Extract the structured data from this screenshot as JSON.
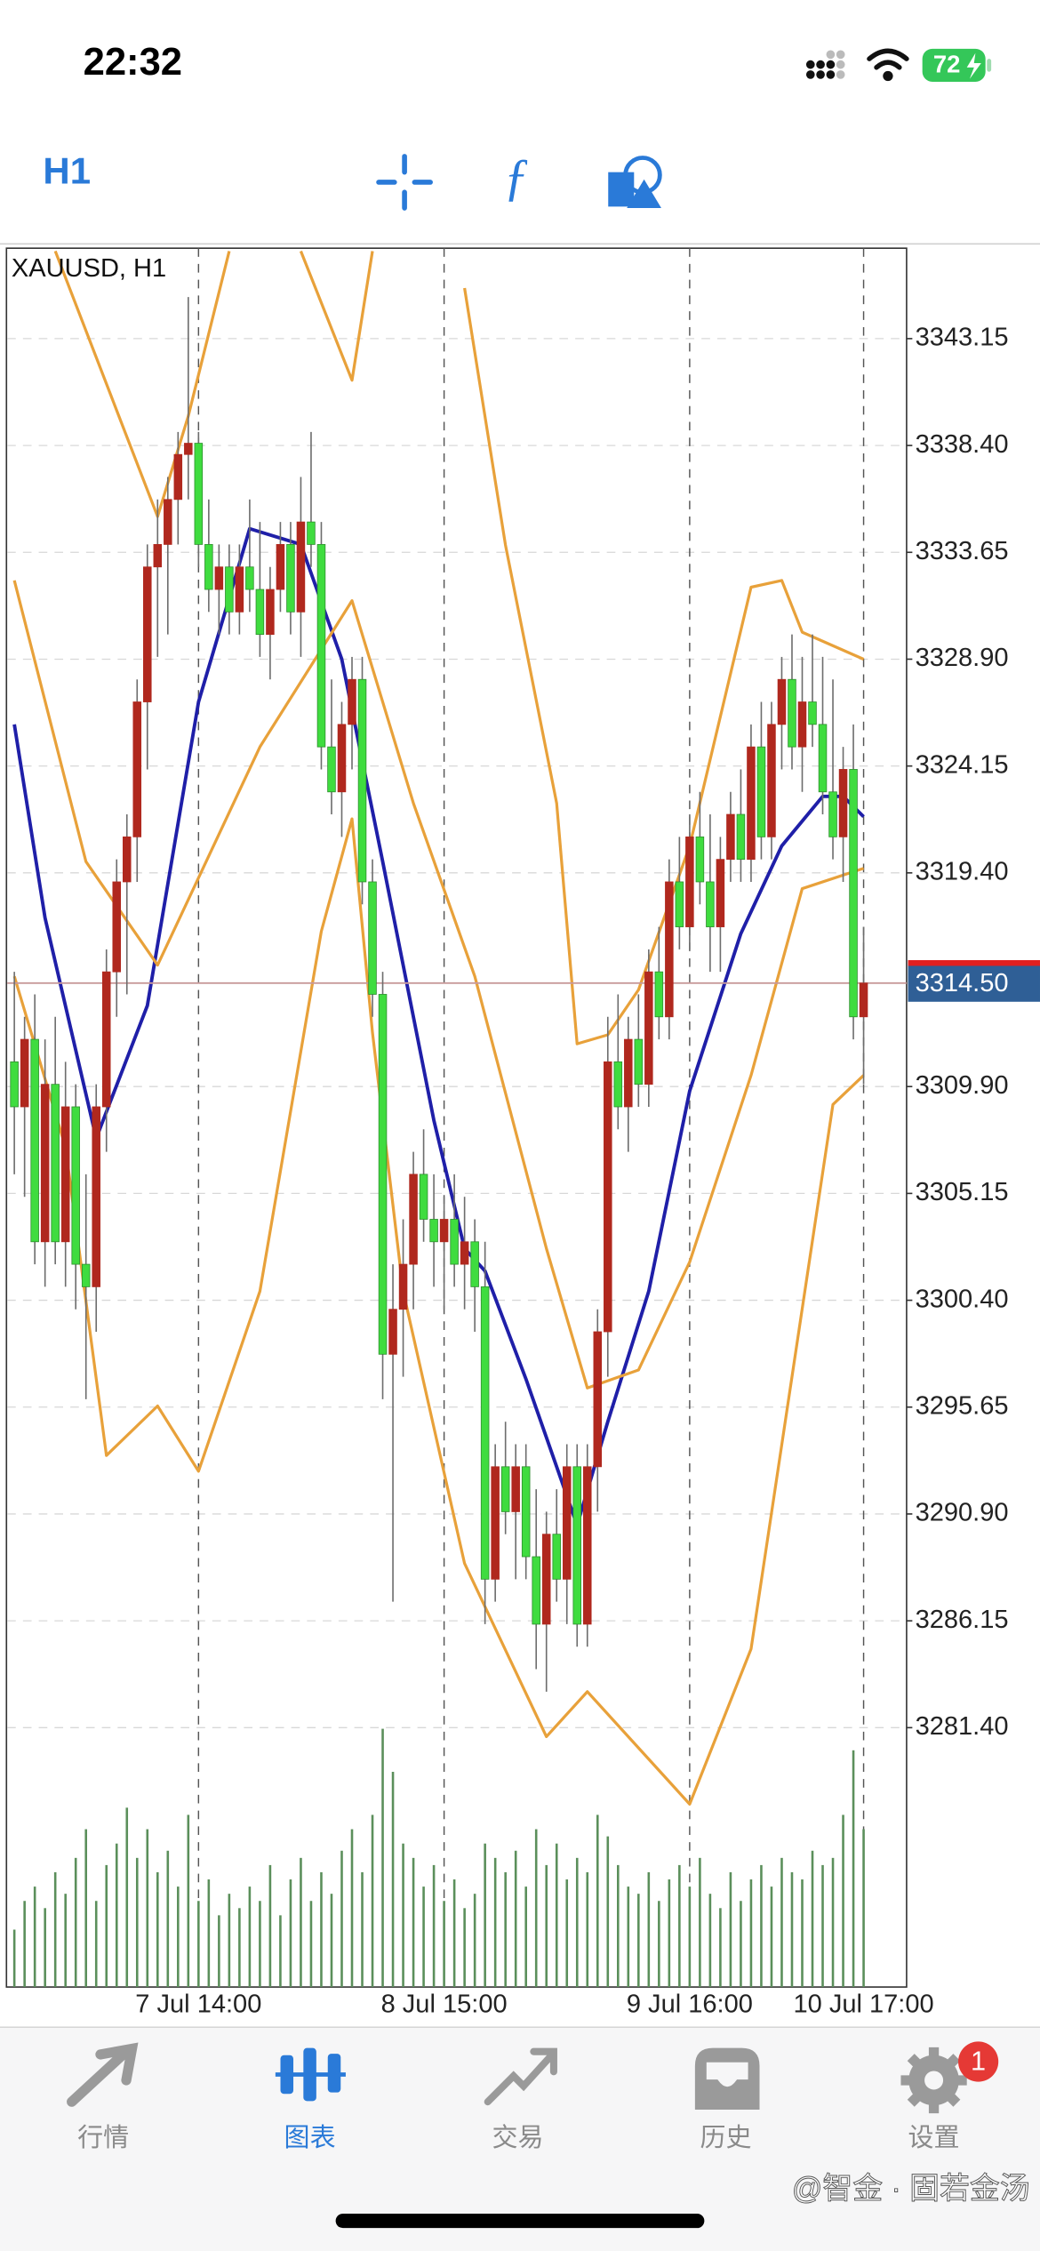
{
  "status_bar": {
    "time": "22:32",
    "battery": 72
  },
  "toolbar": {
    "timeframe": "H1"
  },
  "chart_data": {
    "type": "candlestick",
    "title": "XAUUSD, H1",
    "ohlc": [
      [
        3311,
        3315,
        3306,
        3309
      ],
      [
        3309,
        3313,
        3305,
        3312
      ],
      [
        3312,
        3314,
        3302,
        3303
      ],
      [
        3303,
        3312,
        3301,
        3310
      ],
      [
        3310,
        3313,
        3302,
        3303
      ],
      [
        3303,
        3311,
        3301,
        3309
      ],
      [
        3309,
        3310,
        3300,
        3302
      ],
      [
        3302,
        3306,
        3296,
        3301
      ],
      [
        3301,
        3310,
        3299,
        3309
      ],
      [
        3309,
        3316,
        3307,
        3315
      ],
      [
        3315,
        3320,
        3313,
        3319
      ],
      [
        3319,
        3322,
        3314,
        3321
      ],
      [
        3321,
        3328,
        3319,
        3327
      ],
      [
        3327,
        3334,
        3324,
        3333
      ],
      [
        3333,
        3336,
        3329,
        3334
      ],
      [
        3334,
        3337,
        3330,
        3336
      ],
      [
        3336,
        3339,
        3334,
        3338
      ],
      [
        3338,
        3345,
        3336,
        3338.5
      ],
      [
        3338.5,
        3339,
        3333,
        3334
      ],
      [
        3334,
        3336,
        3331,
        3332
      ],
      [
        3332,
        3334,
        3330,
        3333
      ],
      [
        3333,
        3334,
        3330,
        3331
      ],
      [
        3331,
        3334,
        3330,
        3333
      ],
      [
        3333,
        3336,
        3331,
        3332
      ],
      [
        3332,
        3335,
        3329,
        3330
      ],
      [
        3330,
        3333,
        3328,
        3332
      ],
      [
        3332,
        3335,
        3331,
        3334
      ],
      [
        3334,
        3335,
        3330,
        3331
      ],
      [
        3331,
        3337,
        3329,
        3335
      ],
      [
        3335,
        3339,
        3333,
        3334
      ],
      [
        3334,
        3335,
        3324,
        3325
      ],
      [
        3325,
        3328,
        3322,
        3323
      ],
      [
        3323,
        3327,
        3321,
        3326
      ],
      [
        3326,
        3329,
        3324,
        3328
      ],
      [
        3328,
        3329,
        3318,
        3319
      ],
      [
        3319,
        3320,
        3313,
        3314
      ],
      [
        3314,
        3315,
        3296,
        3298
      ],
      [
        3298,
        3302,
        3287,
        3300
      ],
      [
        3300,
        3304,
        3297,
        3302
      ],
      [
        3302,
        3307,
        3300,
        3306
      ],
      [
        3306,
        3308,
        3303,
        3304
      ],
      [
        3304,
        3306,
        3301,
        3303
      ],
      [
        3303,
        3305,
        3300,
        3304
      ],
      [
        3304,
        3306,
        3301,
        3302
      ],
      [
        3302,
        3305,
        3300,
        3303
      ],
      [
        3303,
        3304,
        3299,
        3301
      ],
      [
        3301,
        3303,
        3286,
        3288
      ],
      [
        3288,
        3294,
        3287,
        3293
      ],
      [
        3293,
        3295,
        3290,
        3291
      ],
      [
        3291,
        3294,
        3288,
        3293
      ],
      [
        3293,
        3294,
        3288,
        3289
      ],
      [
        3289,
        3292,
        3284,
        3286
      ],
      [
        3286,
        3291,
        3283,
        3290
      ],
      [
        3290,
        3292,
        3287,
        3288
      ],
      [
        3288,
        3294,
        3286,
        3293
      ],
      [
        3293,
        3294,
        3285,
        3286
      ],
      [
        3286,
        3294,
        3285,
        3293
      ],
      [
        3293,
        3300,
        3291,
        3299
      ],
      [
        3299,
        3313,
        3297,
        3311
      ],
      [
        3311,
        3314,
        3308,
        3309
      ],
      [
        3309,
        3313,
        3307,
        3312
      ],
      [
        3312,
        3314,
        3309,
        3310
      ],
      [
        3310,
        3316,
        3309,
        3315
      ],
      [
        3315,
        3317,
        3312,
        3313
      ],
      [
        3313,
        3320,
        3312,
        3319
      ],
      [
        3319,
        3321,
        3316,
        3317
      ],
      [
        3317,
        3322,
        3316,
        3321
      ],
      [
        3321,
        3323,
        3318,
        3319
      ],
      [
        3319,
        3322,
        3315,
        3317
      ],
      [
        3317,
        3321,
        3315,
        3320
      ],
      [
        3320,
        3323,
        3319,
        3322
      ],
      [
        3322,
        3324,
        3319,
        3320
      ],
      [
        3320,
        3326,
        3319,
        3325
      ],
      [
        3325,
        3327,
        3320,
        3321
      ],
      [
        3321,
        3327,
        3320,
        3326
      ],
      [
        3326,
        3329,
        3324,
        3328
      ],
      [
        3328,
        3330,
        3324,
        3325
      ],
      [
        3325,
        3329,
        3323,
        3327
      ],
      [
        3327,
        3330,
        3325,
        3326
      ],
      [
        3326,
        3329,
        3322,
        3323
      ],
      [
        3323,
        3328,
        3320,
        3321
      ],
      [
        3321,
        3325,
        3319,
        3324
      ],
      [
        3324,
        3326,
        3312,
        3313
      ],
      [
        3313,
        3317,
        3310,
        3314.5
      ]
    ],
    "up_color": "#b0281e",
    "down_color": "#3fdc3f",
    "wick_color": "#6d6d6d",
    "xlim": [
      -0.7,
      87.2
    ],
    "ylim": [
      3269.87,
      3347.17
    ],
    "yticks": [
      3343.15,
      {
        "value": 3338.4,
        "label": "3338.40"
      },
      3333.65,
      {
        "value": 3328.9,
        "label": "3328.90"
      },
      3324.15,
      {
        "value": 3319.4,
        "label": "3319.40"
      },
      {
        "value": 3309.9,
        "label": "3309.90"
      },
      3305.15,
      {
        "value": 3300.4,
        "label": "3300.40"
      },
      3295.65,
      {
        "value": 3290.9,
        "label": "3290.90"
      },
      3286.15,
      {
        "value": 3281.4,
        "label": "3281.40"
      }
    ],
    "xticks": [
      {
        "value": 18,
        "label": "7 Jul 14:00"
      },
      {
        "value": 42,
        "label": "8 Jul 15:00"
      },
      {
        "value": 66,
        "label": "9 Jul 16:00"
      },
      {
        "value": 83,
        "label": "10 Jul 17:00"
      }
    ],
    "grid": true,
    "current_price": {
      "value": 3314.5,
      "label": "3314.50"
    },
    "indicators": [
      {
        "color": "#1f1fa8",
        "x": [
          0,
          3,
          8,
          13,
          18,
          23,
          28,
          32,
          36,
          41,
          44,
          46,
          50,
          55,
          58,
          62,
          66,
          71,
          75,
          79,
          81,
          83
        ],
        "values": [
          3326,
          3317.4,
          3307.6,
          3313.5,
          3327,
          3334.7,
          3334,
          3328.9,
          3319.9,
          3308.4,
          3302.7,
          3301.7,
          3296.9,
          3290.4,
          3295,
          3300.8,
          3309.7,
          3316.7,
          3320.6,
          3322.8,
          3322.8,
          3321.9
        ]
      },
      {
        "color": "#e8a13a",
        "x": [
          4,
          14,
          17,
          21,
          24,
          28,
          33,
          35,
          38,
          44,
          48,
          53,
          55,
          58,
          61,
          66,
          72,
          75,
          77,
          83
        ],
        "values": [
          3347.04,
          3335.24,
          3339.71,
          3347.04,
          null,
          3347.04,
          3341.3,
          3347.04,
          null,
          3345.4,
          3333.97,
          3322.5,
          3311.8,
          3312.2,
          3314.2,
          3320.6,
          3332.1,
          3332.4,
          3330.1,
          3328.9
        ]
      },
      {
        "color": "#e8a13a",
        "x": [
          0,
          7,
          14,
          24,
          33,
          39,
          45,
          52,
          56,
          61,
          66,
          72,
          77,
          83
        ],
        "values": [
          3332.4,
          3319.9,
          3315.3,
          3325,
          3331.5,
          3322.5,
          3314.8,
          3302.7,
          3296.5,
          3297.3,
          3302.1,
          3310.4,
          3318.7,
          3319.6
        ]
      },
      {
        "color": "#e8a13a",
        "x": [
          0,
          5,
          9,
          14,
          18,
          24,
          30,
          33,
          35,
          38,
          44,
          52,
          56,
          66,
          72,
          76,
          80,
          83
        ],
        "values": [
          3314.8,
          3307.2,
          3293.5,
          3295.7,
          3292.8,
          3300.8,
          3316.8,
          3321.8,
          3312.3,
          3300.8,
          3288.7,
          3281,
          3283,
          3278,
          3284.9,
          3297,
          3309.1,
          3310.4
        ]
      }
    ],
    "volume": {
      "color": "#5b8f5b",
      "ylim": [
        0,
        200
      ],
      "values": [
        40,
        60,
        70,
        55,
        80,
        65,
        90,
        110,
        60,
        85,
        100,
        125,
        90,
        110,
        80,
        95,
        70,
        120,
        60,
        75,
        50,
        65,
        55,
        70,
        60,
        85,
        50,
        75,
        90,
        60,
        80,
        65,
        95,
        110,
        80,
        120,
        180,
        150,
        100,
        90,
        70,
        85,
        60,
        75,
        55,
        65,
        100,
        90,
        80,
        95,
        70,
        110,
        85,
        100,
        75,
        90,
        80,
        120,
        105,
        85,
        70,
        65,
        80,
        60,
        75,
        85,
        70,
        90,
        65,
        55,
        80,
        60,
        75,
        85,
        70,
        90,
        80,
        75,
        95,
        85,
        90,
        120,
        165,
        110
      ]
    }
  },
  "tab_bar": {
    "items": [
      "行情",
      "图表",
      "交易",
      "历史",
      "设置"
    ],
    "active": 1,
    "badge": 1
  },
  "watermark": "@智金 · 固若金汤"
}
